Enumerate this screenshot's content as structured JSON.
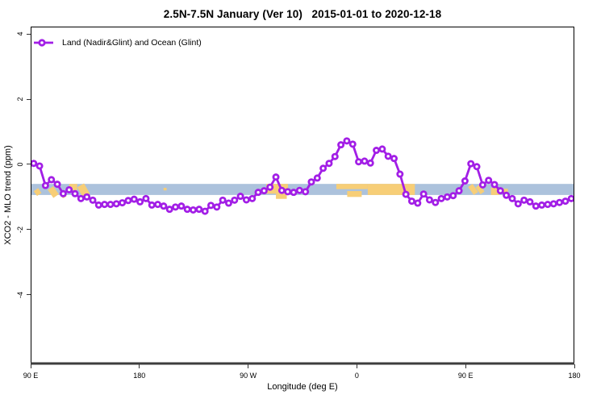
{
  "header": {
    "title": "2.5N-7.5N January (Ver 10)   2015-01-01 to 2020-12-18"
  },
  "legend": {
    "label": "Land (Nadir&Glint) and Ocean (Glint)"
  },
  "axes": {
    "x": {
      "label": "Longitude (deg E)",
      "ticks": [
        {
          "pos": 0,
          "label": "90 E"
        },
        {
          "pos": 90,
          "label": "180"
        },
        {
          "pos": 180,
          "label": "90 W"
        },
        {
          "pos": 270,
          "label": "0"
        },
        {
          "pos": 360,
          "label": "90 E"
        },
        {
          "pos": 450,
          "label": "180"
        }
      ]
    },
    "y": {
      "label": "XCO2 - MLO trend (ppm)",
      "ticks": [
        {
          "val": 4,
          "label": "4"
        },
        {
          "val": 2,
          "label": "2"
        },
        {
          "val": 0,
          "label": "0"
        },
        {
          "val": -2,
          "label": "-2"
        },
        {
          "val": -4,
          "label": "-4"
        }
      ]
    }
  },
  "colors": {
    "series": "#A21EE6",
    "marker_fill": "#ffffff",
    "band_blue": "#ACC2DC",
    "band_orange": "#F7CE77",
    "box_border": "#000000",
    "x_axis_thick": "#3d3d3d",
    "tick": "#333333"
  },
  "chart_data": {
    "type": "line",
    "title": "2.5N-7.5N January (Ver 10)   2015-01-01 to 2020-12-18",
    "xlabel": "Longitude (deg E)",
    "ylabel": "XCO2 - MLO trend (ppm)",
    "x_axis_note": "x = degrees eastward along wrapped longitude axis: 0=90E, 90=180, 180=90W, 270=0, 360=90E, 450=180",
    "xlim": [
      0,
      450
    ],
    "ylim": [
      -6.09,
      4.23
    ],
    "x_tick_labels": [
      "90 E",
      "180",
      "90 W",
      "0",
      "90 E",
      "180"
    ],
    "y_ticks": [
      4,
      2,
      0,
      -2,
      -4
    ],
    "grid": false,
    "legend_position": "top-left",
    "series": [
      {
        "name": "Land (Nadir&Glint) and Ocean (Glint)",
        "marker": "open-circle",
        "x_start": 2.5,
        "x_step": 4.89,
        "values": [
          0.03,
          -0.05,
          -0.65,
          -0.47,
          -0.61,
          -0.9,
          -0.78,
          -0.9,
          -1.05,
          -1.0,
          -1.1,
          -1.25,
          -1.23,
          -1.23,
          -1.21,
          -1.18,
          -1.11,
          -1.07,
          -1.15,
          -1.05,
          -1.25,
          -1.23,
          -1.28,
          -1.38,
          -1.31,
          -1.28,
          -1.38,
          -1.4,
          -1.38,
          -1.44,
          -1.26,
          -1.31,
          -1.1,
          -1.19,
          -1.1,
          -0.98,
          -1.09,
          -1.05,
          -0.86,
          -0.81,
          -0.7,
          -0.39,
          -0.8,
          -0.84,
          -0.86,
          -0.8,
          -0.84,
          -0.54,
          -0.42,
          -0.12,
          0.03,
          0.24,
          0.6,
          0.72,
          0.62,
          0.08,
          0.1,
          0.04,
          0.43,
          0.47,
          0.25,
          0.18,
          -0.3,
          -0.92,
          -1.13,
          -1.19,
          -0.91,
          -1.09,
          -1.17,
          -1.05,
          -1.0,
          -0.96,
          -0.81,
          -0.51,
          0.02,
          -0.07,
          -0.63,
          -0.49,
          -0.62,
          -0.81,
          -0.95,
          -1.05,
          -1.21,
          -1.1,
          -1.15,
          -1.28,
          -1.25,
          -1.23,
          -1.21,
          -1.17,
          -1.13,
          -1.05
        ]
      }
    ],
    "bands": {
      "blue_band": {
        "x_range": [
          0,
          450
        ],
        "y_range": [
          -0.94,
          -0.6
        ]
      },
      "orange_patches": [
        {
          "x": [
            3.5,
            8.0
          ],
          "y": [
            -0.94,
            -0.76
          ],
          "rot": -35
        },
        {
          "x": [
            16.0,
            21.5
          ],
          "y": [
            -1.0,
            -0.7
          ],
          "rot": -35
        },
        {
          "x": [
            25.5,
            29.0
          ],
          "y": [
            -1.02,
            -0.88
          ],
          "rot": -30
        },
        {
          "x": [
            32.0,
            38.5
          ],
          "y": [
            -0.8,
            -0.6
          ],
          "rot": 0
        },
        {
          "x": [
            40.5,
            47.0
          ],
          "y": [
            -0.98,
            -0.62
          ],
          "rot": -30
        },
        {
          "x": [
            110.0,
            112.5
          ],
          "y": [
            -0.8,
            -0.72
          ],
          "rot": 0
        },
        {
          "x": [
            195.0,
            213.0
          ],
          "y": [
            -0.9,
            -0.6
          ],
          "rot": 0
        },
        {
          "x": [
            203.0,
            212.0
          ],
          "y": [
            -1.06,
            -0.9
          ],
          "rot": 0
        },
        {
          "x": [
            253.0,
            279.0
          ],
          "y": [
            -0.76,
            -0.6
          ],
          "rot": 0
        },
        {
          "x": [
            279.0,
            318.0
          ],
          "y": [
            -0.94,
            -0.6
          ],
          "rot": 0
        },
        {
          "x": [
            262.0,
            274.0
          ],
          "y": [
            -1.0,
            -0.82
          ],
          "rot": 0
        },
        {
          "x": [
            364.0,
            368.5
          ],
          "y": [
            -0.92,
            -0.62
          ],
          "rot": -35
        },
        {
          "x": [
            370.0,
            374.0
          ],
          "y": [
            -0.9,
            -0.64
          ],
          "rot": -35
        },
        {
          "x": [
            381.0,
            388.0
          ],
          "y": [
            -0.94,
            -0.72
          ],
          "rot": 0
        },
        {
          "x": [
            390.0,
            395.0
          ],
          "y": [
            -0.9,
            -0.75
          ],
          "rot": 0
        }
      ]
    }
  }
}
